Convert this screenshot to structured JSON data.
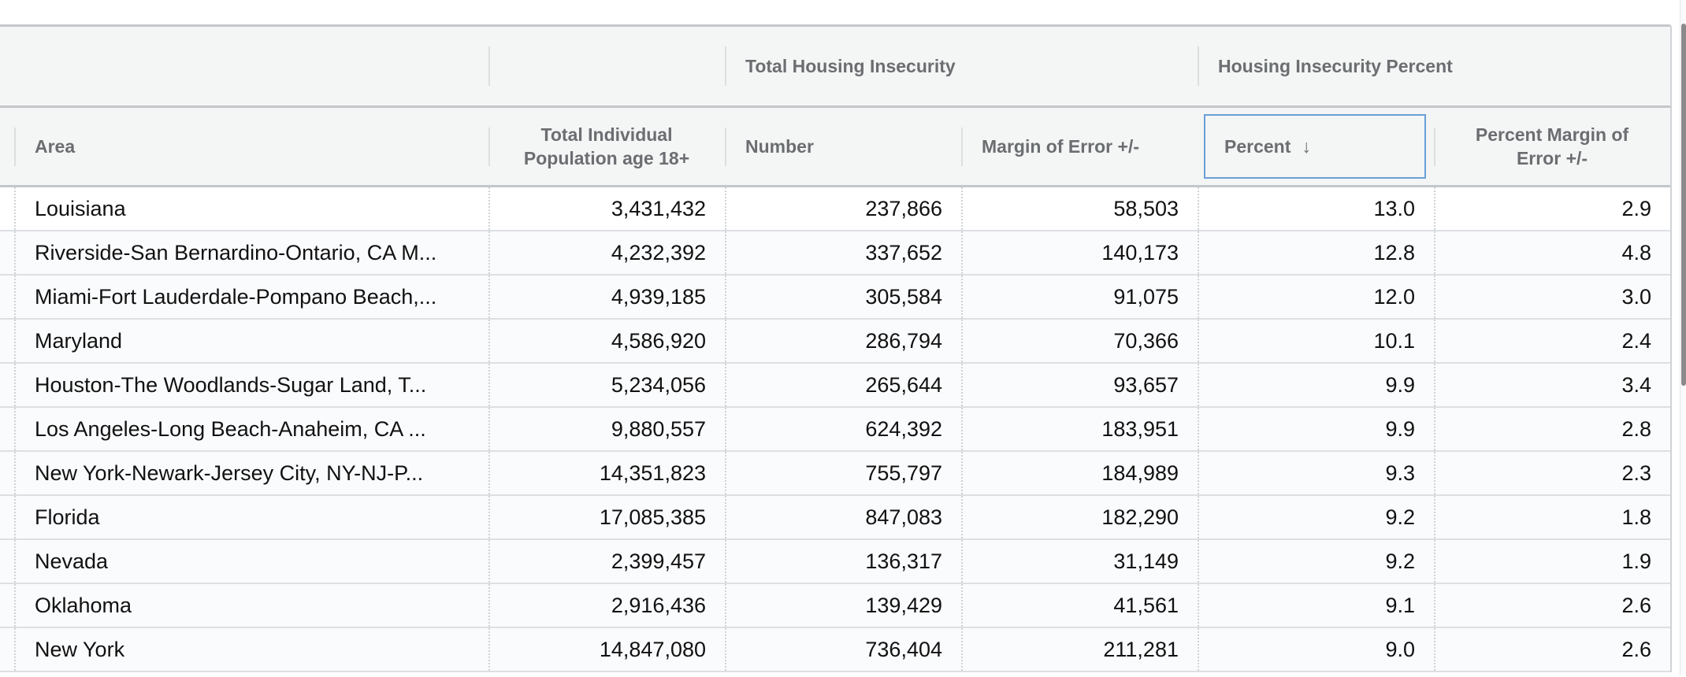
{
  "group_headers": [
    "",
    "",
    "Total Housing Insecurity",
    "Housing Insecurity Percent"
  ],
  "columns": [
    "Area",
    "Total Individual Population age 18+",
    "Number",
    "Margin of Error +/-",
    "Percent",
    "Percent Margin of Error +/-"
  ],
  "sort": {
    "column": "Percent",
    "direction": "descending",
    "icon": "arrow-down-icon",
    "glyph": "↓"
  },
  "accent_color": "#6b9fd8",
  "rows": [
    [
      "Louisiana",
      "3,431,432",
      "237,866",
      "58,503",
      "13.0",
      "2.9"
    ],
    [
      "Riverside-San Bernardino-Ontario, CA M...",
      "4,232,392",
      "337,652",
      "140,173",
      "12.8",
      "4.8"
    ],
    [
      "Miami-Fort Lauderdale-Pompano Beach,...",
      "4,939,185",
      "305,584",
      "91,075",
      "12.0",
      "3.0"
    ],
    [
      "Maryland",
      "4,586,920",
      "286,794",
      "70,366",
      "10.1",
      "2.4"
    ],
    [
      "Houston-The Woodlands-Sugar Land, T...",
      "5,234,056",
      "265,644",
      "93,657",
      "9.9",
      "3.4"
    ],
    [
      "Los Angeles-Long Beach-Anaheim, CA ...",
      "9,880,557",
      "624,392",
      "183,951",
      "9.9",
      "2.8"
    ],
    [
      "New York-Newark-Jersey City, NY-NJ-P...",
      "14,351,823",
      "755,797",
      "184,989",
      "9.3",
      "2.3"
    ],
    [
      "Florida",
      "17,085,385",
      "847,083",
      "182,290",
      "9.2",
      "1.8"
    ],
    [
      "Nevada",
      "2,399,457",
      "136,317",
      "31,149",
      "9.2",
      "1.9"
    ],
    [
      "Oklahoma",
      "2,916,436",
      "139,429",
      "41,561",
      "9.1",
      "2.6"
    ],
    [
      "New York",
      "14,847,080",
      "736,404",
      "211,281",
      "9.0",
      "2.6"
    ]
  ]
}
